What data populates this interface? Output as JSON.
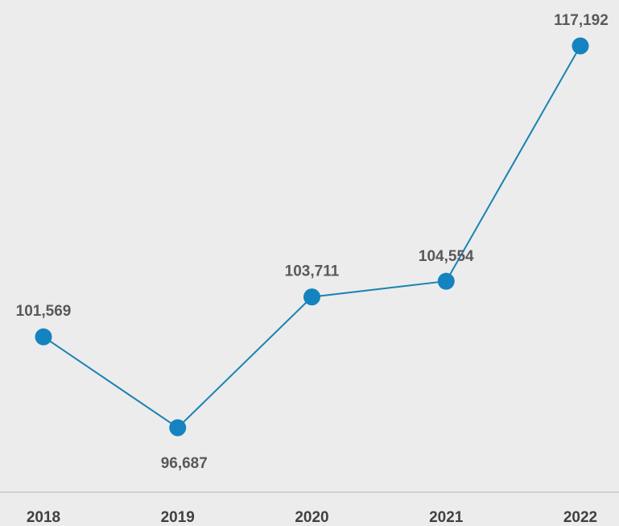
{
  "chart_data": {
    "type": "line",
    "categories": [
      "2018",
      "2019",
      "2020",
      "2021",
      "2022"
    ],
    "series": [
      {
        "values": [
          101569,
          96687,
          103711,
          104554,
          117192
        ]
      }
    ],
    "data_labels": [
      "101,569",
      "96,687",
      "103,711",
      "104,554",
      "117,192"
    ],
    "title": "",
    "xlabel": "",
    "ylabel": "",
    "grid": false,
    "legend": "none",
    "colors": {
      "line": "#1a82b2",
      "marker": "#1483bf",
      "axis": "#c8c8c8",
      "background": "#ececec"
    }
  }
}
